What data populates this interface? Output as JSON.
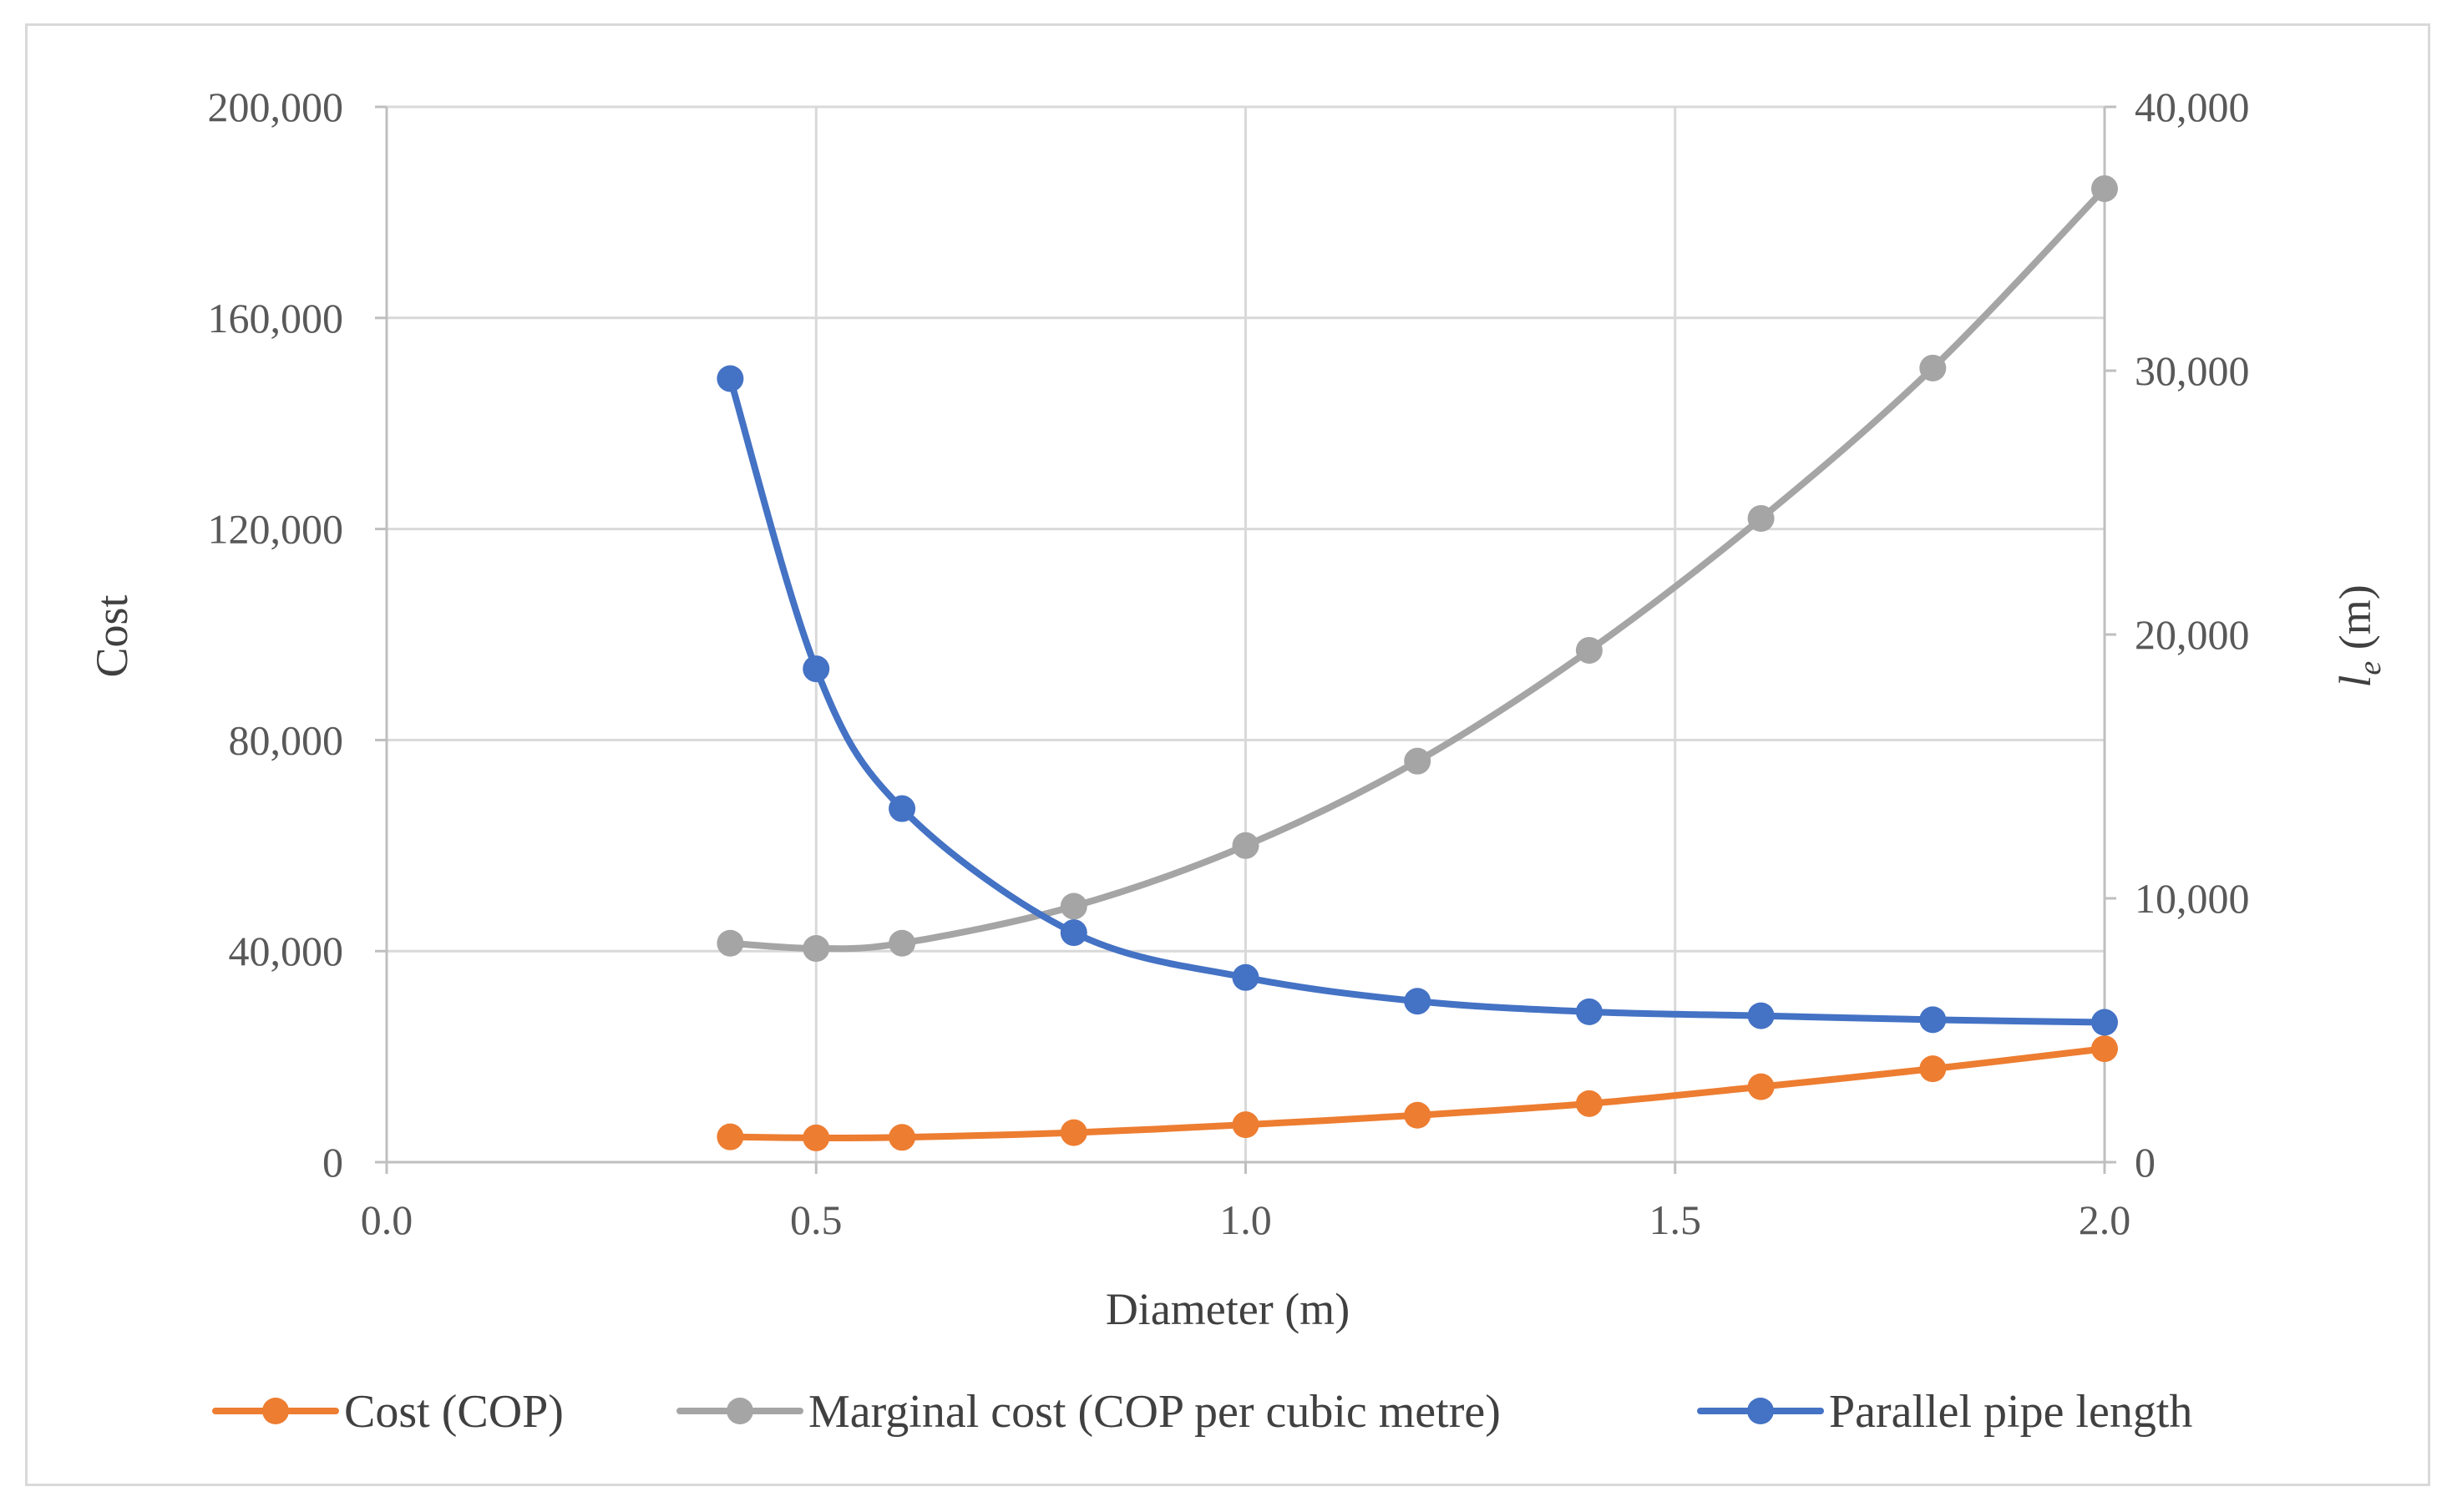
{
  "chart_data": {
    "type": "line",
    "title": "",
    "xlabel": "Diameter  (m)",
    "ylabel": "Cost",
    "y2label_main": "l",
    "y2label_sub": "e",
    "y2label_unit": " (m)",
    "xlim": [
      0,
      2
    ],
    "ylim": [
      0,
      200000
    ],
    "y2lim": [
      0,
      40000
    ],
    "x_ticks": [
      0,
      0.5,
      1,
      1.5,
      2
    ],
    "x_tick_labels": [
      "0.0",
      "0.5",
      "1.0",
      "1.5",
      "2.0"
    ],
    "y_ticks": [
      0,
      40000,
      80000,
      120000,
      160000,
      200000
    ],
    "y_tick_labels": [
      "0",
      "40,000",
      "80,000",
      "120,000",
      "160,000",
      "200,000"
    ],
    "y2_ticks": [
      0,
      10000,
      20000,
      30000,
      40000
    ],
    "y2_tick_labels": [
      "0",
      "10,000",
      "20,000",
      "30,000",
      "40,000"
    ],
    "grid": true,
    "legend_position": "bottom",
    "x": [
      0.4,
      0.5,
      0.6,
      0.8,
      1.0,
      1.2,
      1.4,
      1.6,
      1.8,
      2.0
    ],
    "series": [
      {
        "name": "Cost (COP)",
        "axis": "left",
        "color": "#ed7d31",
        "values": [
          4800,
          4600,
          4700,
          5600,
          7100,
          8900,
          11100,
          14300,
          17700,
          21500
        ]
      },
      {
        "name": "Marginal cost (COP per cubic metre)",
        "axis": "left",
        "color": "#a5a5a5",
        "values": [
          41500,
          40500,
          41500,
          48500,
          60000,
          76000,
          97000,
          122000,
          150500,
          184500
        ]
      },
      {
        "name": "Parallel pipe length",
        "axis": "right",
        "color": "#4472c4",
        "values": [
          29700,
          18700,
          13400,
          8700,
          7000,
          6100,
          5700,
          5550,
          5400,
          5300
        ]
      }
    ]
  }
}
